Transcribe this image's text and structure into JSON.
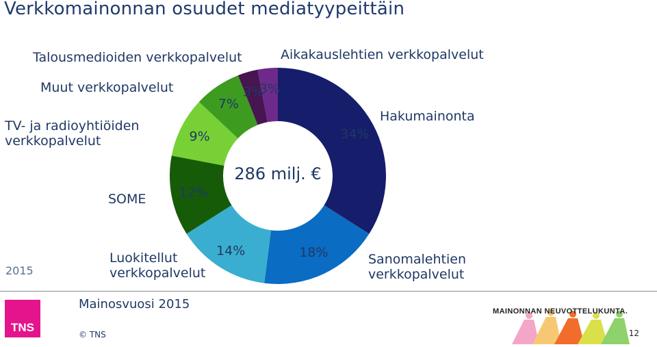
{
  "title": "Verkkomainonnan osuudet mediatyypeittäin",
  "chart_data": {
    "type": "pie",
    "title": "Verkkomainonnan osuudet mediatyypeittäin",
    "variant": "donut",
    "center_label": "286 milj. €",
    "unit": "%",
    "categories": [
      "Hakumainonta",
      "Sanomalehtien verkkopalvelut",
      "Luokitellut verkkopalvelut",
      "SOME",
      "TV- ja radioyhtiöiden verkkopalvelut",
      "Muut verkkopalvelut",
      "Talousmedioiden verkkopalvelut",
      "Aikakauslehtien verkkopalvelut"
    ],
    "values": [
      34,
      18,
      14,
      12,
      9,
      7,
      3,
      3
    ],
    "data_labels": [
      "34%",
      "18%",
      "14%",
      "12%",
      "9%",
      "7%",
      "3%",
      "3%"
    ],
    "colors": [
      "#161d6b",
      "#0a6cc2",
      "#3aaed0",
      "#165c08",
      "#77d136",
      "#3d9c20",
      "#47154f",
      "#6e2a8a"
    ]
  },
  "labels": {
    "talousmediat": "Talousmedioiden verkkopalvelut",
    "aikakauslehdet": "Aikakauslehtien verkkopalvelut",
    "muut": "Muut verkkopalvelut",
    "tv_line1": "TV- ja radioyhtiöiden",
    "tv_line2": "verkkopalvelut",
    "hakumainonta": "Hakumainonta",
    "some": "SOME",
    "luokitellut_line1": "Luokitellut",
    "luokitellut_line2": "verkkopalvelut",
    "sanomalehdet_line1": "Sanomalehtien",
    "sanomalehdet_line2": "verkkopalvelut"
  },
  "year": "2015",
  "footer": {
    "source_title": "Mainosvuosi 2015",
    "copyright": "© TNS",
    "tns_logo_text": "TNS",
    "mnl_logo_text": "MAINONNAN NEUVOTTELUKUNTA.",
    "page_number": "12"
  }
}
